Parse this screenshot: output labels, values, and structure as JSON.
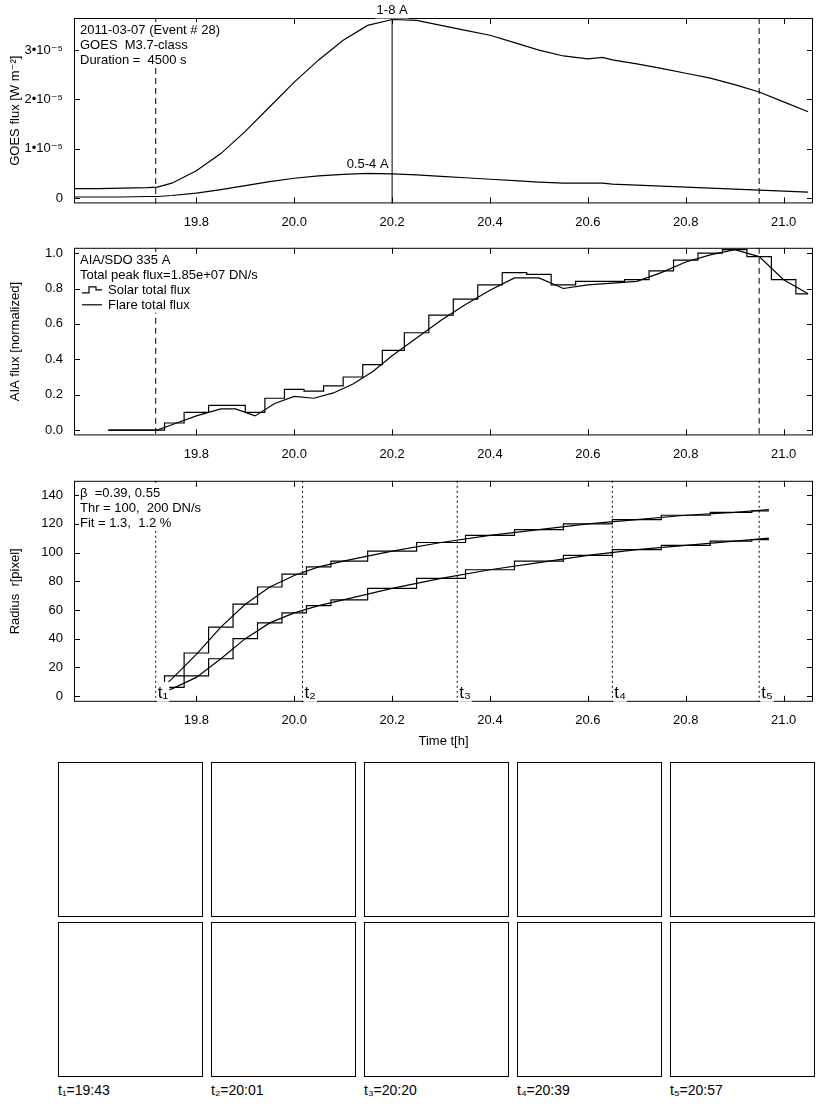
{
  "chart_data": [
    {
      "type": "line",
      "annotations": [
        "2011-03-07 (Event # 28)",
        "GOES  M3.7-class",
        "Duration =  4500 s"
      ],
      "y_label": "GOES flux [W m⁻²]",
      "xlim": [
        19.55,
        21.06
      ],
      "xticks": [
        {
          "value": 19.8,
          "label": "19.8"
        },
        {
          "value": 20.0,
          "label": "20.0"
        },
        {
          "value": 20.2,
          "label": "20.2"
        },
        {
          "value": 20.4,
          "label": "20.4"
        },
        {
          "value": 20.6,
          "label": "20.6"
        },
        {
          "value": 20.8,
          "label": "20.8"
        },
        {
          "value": 21.0,
          "label": "21.0"
        }
      ],
      "ylim": [
        -1.1e-06,
        3.65e-05
      ],
      "yticks": [
        0,
        {
          "value": 1e-05,
          "label": "1•10⁻⁵"
        },
        {
          "value": 2e-05,
          "label": "2•10⁻⁵"
        },
        {
          "value": 3e-05,
          "label": "3•10⁻⁵"
        }
      ],
      "vlines": [
        {
          "x": 19.717,
          "line_style": "dashed"
        },
        {
          "x": 20.2,
          "line_style": "solid"
        },
        {
          "x": 20.95,
          "line_style": "dashed"
        }
      ],
      "series": [
        {
          "name": "1-8 A",
          "color": "#000000",
          "line_style": "solid",
          "x": [
            19.55,
            19.6,
            19.65,
            19.7,
            19.72,
            19.75,
            19.8,
            19.85,
            19.9,
            19.95,
            20.0,
            20.05,
            20.1,
            20.15,
            20.2,
            20.25,
            20.3,
            20.35,
            20.4,
            20.45,
            20.5,
            20.55,
            20.6,
            20.63,
            20.65,
            20.7,
            20.75,
            20.8,
            20.85,
            20.9,
            20.95,
            21.0,
            21.05
          ],
          "values": [
            1.9e-06,
            1.9e-06,
            2e-06,
            2.1e-06,
            2.2e-06,
            3e-06,
            5.5e-06,
            9e-06,
            1.35e-05,
            1.85e-05,
            2.35e-05,
            2.8e-05,
            3.2e-05,
            3.5e-05,
            3.62e-05,
            3.6e-05,
            3.5e-05,
            3.4e-05,
            3.3e-05,
            3.15e-05,
            3e-05,
            2.88e-05,
            2.82e-05,
            2.85e-05,
            2.8e-05,
            2.72e-05,
            2.63e-05,
            2.53e-05,
            2.43e-05,
            2.3e-05,
            2.15e-05,
            1.95e-05,
            1.75e-05
          ]
        },
        {
          "name": "0.5-4 A",
          "color": "#000000",
          "line_style": "solid",
          "x": [
            19.55,
            19.6,
            19.65,
            19.7,
            19.72,
            19.75,
            19.8,
            19.85,
            19.9,
            19.95,
            20.0,
            20.05,
            20.1,
            20.15,
            20.2,
            20.25,
            20.3,
            20.35,
            20.4,
            20.45,
            20.5,
            20.55,
            20.6,
            20.63,
            20.65,
            20.7,
            20.75,
            20.8,
            20.85,
            20.9,
            20.95,
            21.0,
            21.05
          ],
          "values": [
            2e-07,
            2e-07,
            2e-07,
            3e-07,
            3e-07,
            5e-07,
            1e-06,
            1.7e-06,
            2.5e-06,
            3.3e-06,
            4e-06,
            4.5e-06,
            4.8e-06,
            5e-06,
            4.9e-06,
            4.7e-06,
            4.4e-06,
            4.1e-06,
            3.8e-06,
            3.5e-06,
            3.2e-06,
            3e-06,
            3e-06,
            3e-06,
            2.8e-06,
            2.6e-06,
            2.4e-06,
            2.2e-06,
            2e-06,
            1.8e-06,
            1.6e-06,
            1.4e-06,
            1.2e-06
          ]
        }
      ]
    },
    {
      "type": "line",
      "annotations": [
        "AIA/SDO 335 A",
        "Total peak flux=1.85e+07 DN/s"
      ],
      "y_label": "AIA flux [normalized]",
      "legend": "top-left",
      "xlim": [
        19.55,
        21.06
      ],
      "xticks": [
        {
          "value": 19.8,
          "label": "19.8"
        },
        {
          "value": 20.0,
          "label": "20.0"
        },
        {
          "value": 20.2,
          "label": "20.2"
        },
        {
          "value": 20.4,
          "label": "20.4"
        },
        {
          "value": 20.6,
          "label": "20.6"
        },
        {
          "value": 20.8,
          "label": "20.8"
        },
        {
          "value": 21.0,
          "label": "21.0"
        }
      ],
      "ylim": [
        -0.03,
        1.03
      ],
      "yticks": [
        {
          "value": 0,
          "label": "0.0"
        },
        {
          "value": 0.2,
          "label": "0.2"
        },
        {
          "value": 0.4,
          "label": "0.4"
        },
        {
          "value": 0.6,
          "label": "0.6"
        },
        {
          "value": 0.8,
          "label": "0.8"
        },
        {
          "value": 1,
          "label": "1.0"
        }
      ],
      "vlines": [
        {
          "x": 19.717,
          "line_style": "dashed"
        },
        {
          "x": 20.95,
          "line_style": "dashed"
        }
      ],
      "series": [
        {
          "name": "Solar total flux",
          "color": "#000000",
          "line_style": "step",
          "x": [
            19.62,
            19.7,
            19.72,
            19.75,
            19.8,
            19.85,
            19.88,
            19.92,
            19.96,
            20.0,
            20.04,
            20.08,
            20.12,
            20.16,
            20.2,
            20.25,
            20.3,
            20.35,
            20.4,
            20.45,
            20.5,
            20.55,
            20.6,
            20.65,
            20.7,
            20.75,
            20.8,
            20.85,
            20.9,
            20.95,
            21.0,
            21.05
          ],
          "values": [
            0.0,
            0.0,
            0.0,
            0.04,
            0.1,
            0.14,
            0.14,
            0.1,
            0.18,
            0.23,
            0.22,
            0.25,
            0.3,
            0.37,
            0.45,
            0.55,
            0.65,
            0.74,
            0.82,
            0.89,
            0.88,
            0.82,
            0.84,
            0.84,
            0.85,
            0.9,
            0.96,
            1.0,
            1.02,
            0.98,
            0.85,
            0.77
          ]
        },
        {
          "name": "Flare total flux",
          "color": "#000000",
          "line_style": "solid",
          "x": [
            19.62,
            19.7,
            19.72,
            19.75,
            19.8,
            19.85,
            19.88,
            19.92,
            19.96,
            20.0,
            20.04,
            20.08,
            20.12,
            20.16,
            20.2,
            20.25,
            20.3,
            20.35,
            20.4,
            20.45,
            20.5,
            20.55,
            20.6,
            20.65,
            20.7,
            20.75,
            20.8,
            20.85,
            20.9,
            20.95,
            21.0,
            21.05
          ],
          "values": [
            0.0,
            0.0,
            0.0,
            0.03,
            0.08,
            0.12,
            0.12,
            0.08,
            0.15,
            0.19,
            0.18,
            0.21,
            0.26,
            0.33,
            0.42,
            0.52,
            0.62,
            0.71,
            0.79,
            0.86,
            0.86,
            0.8,
            0.82,
            0.83,
            0.84,
            0.89,
            0.95,
            0.99,
            1.02,
            0.98,
            0.85,
            0.77
          ]
        }
      ]
    },
    {
      "type": "line",
      "annotations": [
        "β  =0.39, 0.55",
        "Thr = 100,  200 DN/s",
        "Fit = 1.3,  1.2 %"
      ],
      "x_label": "Time t[h]",
      "y_label": "Radius  r[pixel]",
      "xlim": [
        19.55,
        21.06
      ],
      "xticks": [
        {
          "value": 19.8,
          "label": "19.8"
        },
        {
          "value": 20.0,
          "label": "20.0"
        },
        {
          "value": 20.2,
          "label": "20.2"
        },
        {
          "value": 20.4,
          "label": "20.4"
        },
        {
          "value": 20.6,
          "label": "20.6"
        },
        {
          "value": 20.8,
          "label": "20.8"
        },
        {
          "value": 21.0,
          "label": "21.0"
        }
      ],
      "ylim": [
        -4,
        150
      ],
      "yticks": [
        0,
        20,
        40,
        60,
        80,
        100,
        120,
        140
      ],
      "markers": [
        {
          "x": 19.717,
          "label": "t₁",
          "line_style": "dotted"
        },
        {
          "x": 20.017,
          "label": "t₂",
          "line_style": "dotted"
        },
        {
          "x": 20.333,
          "label": "t₃",
          "line_style": "dotted"
        },
        {
          "x": 20.65,
          "label": "t₄",
          "line_style": "dotted"
        },
        {
          "x": 20.95,
          "label": "t₅",
          "line_style": "dotted"
        }
      ],
      "series": [
        {
          "color": "#000000",
          "line_style": "step",
          "x": [
            19.72,
            19.75,
            19.8,
            19.85,
            19.9,
            19.95,
            20.0,
            20.05,
            20.1,
            20.2,
            20.3,
            20.4,
            20.5,
            20.6,
            20.7,
            20.8,
            20.9,
            20.97
          ],
          "values": [
            5,
            14,
            30,
            48,
            64,
            76,
            85,
            90,
            94,
            101,
            107,
            112,
            116,
            120,
            123,
            126,
            128,
            129
          ]
        },
        {
          "color": "#000000",
          "line_style": "solid",
          "x": [
            19.72,
            19.75,
            19.8,
            19.85,
            19.9,
            19.95,
            20.0,
            20.05,
            20.1,
            20.2,
            20.3,
            20.4,
            20.5,
            20.6,
            20.7,
            20.8,
            20.9,
            20.97
          ],
          "values": [
            3,
            12,
            29,
            48,
            64,
            76,
            84,
            90,
            94,
            101,
            107,
            112,
            116,
            120,
            123,
            126,
            128,
            130
          ]
        },
        {
          "color": "#000000",
          "line_style": "step",
          "x": [
            19.72,
            19.75,
            19.8,
            19.85,
            19.9,
            19.95,
            20.0,
            20.05,
            20.1,
            20.2,
            20.3,
            20.4,
            20.5,
            20.6,
            20.7,
            20.8,
            20.9,
            20.97
          ],
          "values": [
            3,
            6,
            14,
            26,
            40,
            51,
            58,
            63,
            67,
            75,
            82,
            88,
            94,
            98,
            102,
            105,
            108,
            109
          ]
        },
        {
          "color": "#000000",
          "line_style": "solid",
          "x": [
            19.72,
            19.75,
            19.8,
            19.85,
            19.9,
            19.95,
            20.0,
            20.05,
            20.1,
            20.2,
            20.3,
            20.4,
            20.5,
            20.6,
            20.7,
            20.8,
            20.9,
            20.97
          ],
          "values": [
            2,
            5,
            13,
            26,
            40,
            51,
            58,
            63,
            67,
            75,
            82,
            88,
            93,
            98,
            102,
            105,
            108,
            110
          ]
        }
      ]
    }
  ],
  "image_panels": {
    "rows": 2,
    "labels": [
      "t₁=19:43",
      "t₂=20:01",
      "t₃=20:20",
      "t₄=20:39",
      "t₅=20:57"
    ]
  }
}
